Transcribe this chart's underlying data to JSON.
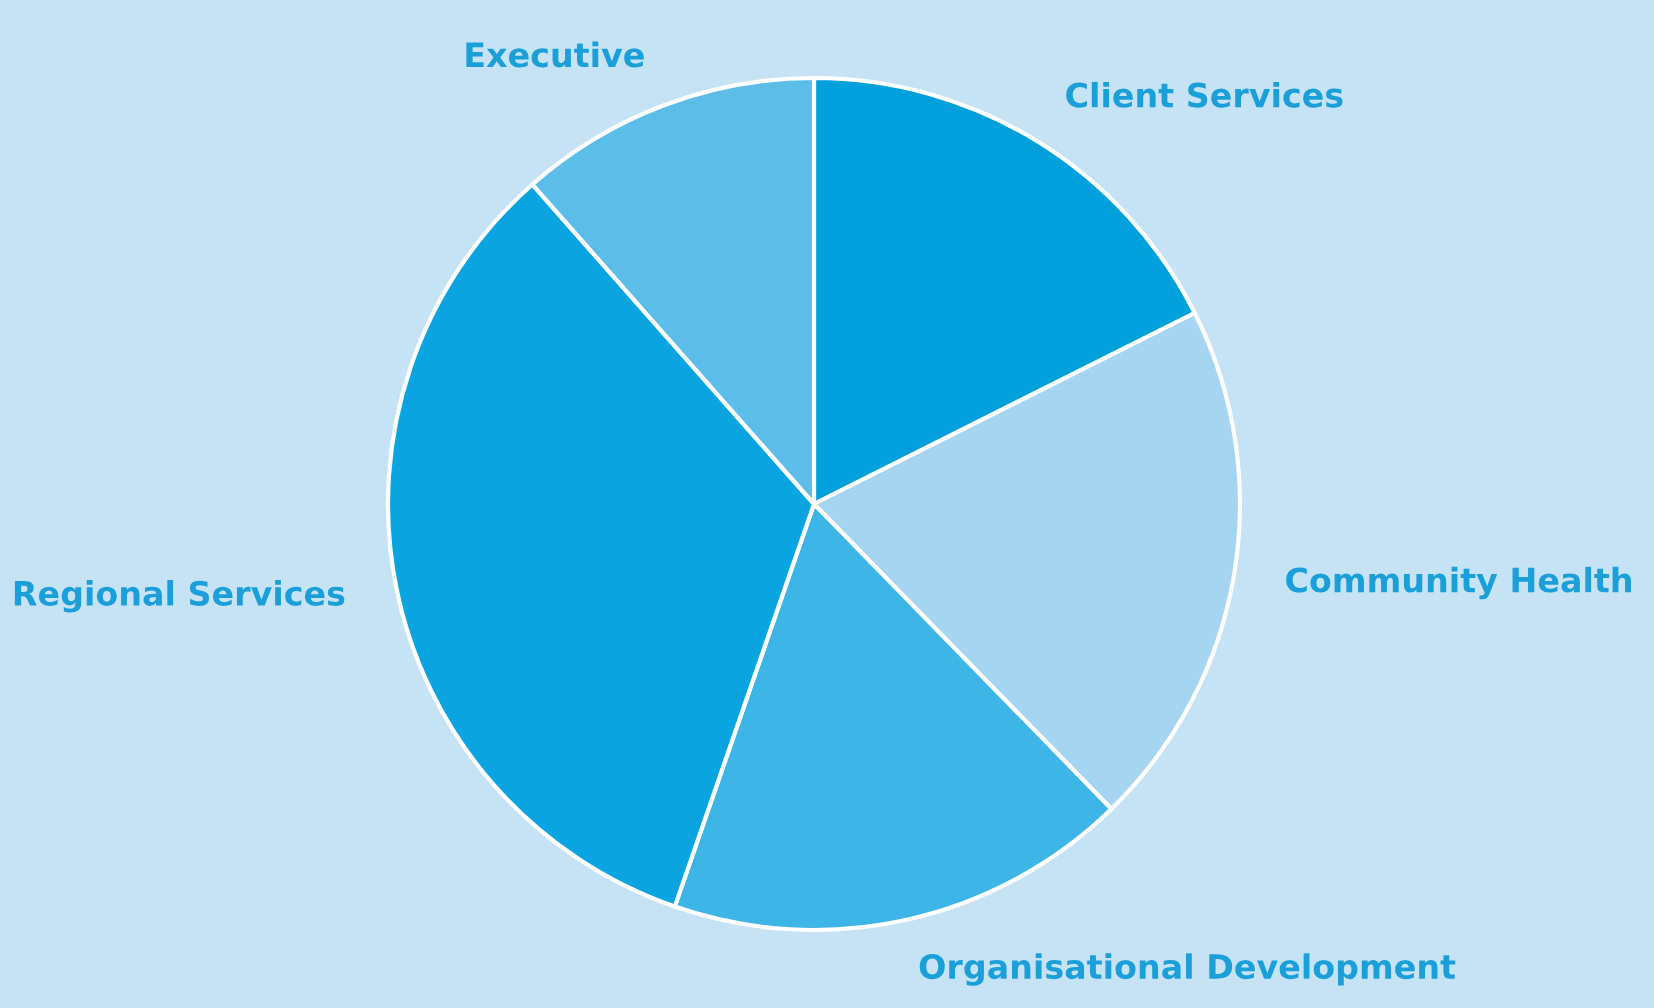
{
  "chart_data": {
    "type": "pie",
    "categories": [
      "Client Services",
      "Community Health",
      "Organisational Development",
      "Regional Services",
      "Executive"
    ],
    "values": [
      17.6,
      20.1,
      17.6,
      33.2,
      11.5
    ],
    "colors": [
      "#00a0dc",
      "#a5d5f0",
      "#3db5e6",
      "#0aa5e0",
      "#5bbde8"
    ]
  }
}
